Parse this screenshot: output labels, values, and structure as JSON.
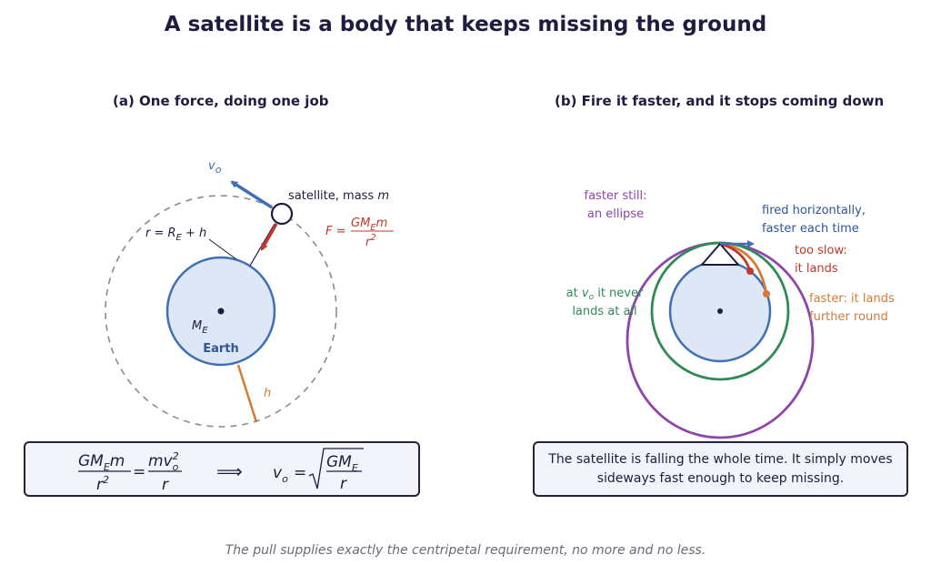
{
  "title": "A satellite is a body that keeps missing the ground",
  "panel_a": {
    "heading": "(a) One force, doing one job",
    "velocity_symbol": "v",
    "velocity_subscript": "o",
    "satellite_label_prefix": "satellite, mass ",
    "satellite_label_var": "m",
    "radius_label": "r = R",
    "radius_label_sub": "E",
    "radius_label_suffix": " + h",
    "force_label": "F =",
    "force_numerator": "GM",
    "force_numerator_sub": "E",
    "force_numerator_tail": "m",
    "force_denominator": "r",
    "force_denominator_sup": "2",
    "earth_mass_label": "M",
    "earth_mass_sub": "E",
    "earth_label": "Earth",
    "altitude_label": "h",
    "equation": {
      "lhs_num": "GM",
      "lhs_num_sub": "E",
      "lhs_num_tail": "m",
      "lhs_den": "r",
      "lhs_den_sup": "2",
      "equals": "=",
      "rhs_num": "mv",
      "rhs_num_sup": "2",
      "rhs_num_sub": "o",
      "rhs_den": "r",
      "implies": "⟹",
      "result_lhs": "v",
      "result_lhs_sub": "o",
      "result_equals": "=",
      "result_num": "GM",
      "result_num_sub": "E",
      "result_den": "r"
    }
  },
  "panel_b": {
    "heading": "(b) Fire it faster, and it stops coming down",
    "ellipse_label_line1": "faster still:",
    "ellipse_label_line2": "an ellipse",
    "fired_label_line1": "fired horizontally,",
    "fired_label_line2": "faster each time",
    "slow_label_line1": "too slow:",
    "slow_label_line2": "it lands",
    "circle_label_line1_a": "at ",
    "circle_label_line1_var": "v",
    "circle_label_line1_sub": "o",
    "circle_label_line1_b": " it never",
    "circle_label_line2": "lands at all",
    "faster_label_line1": "faster: it lands",
    "faster_label_line2": "further round",
    "box_text": "The satellite is falling the whole time. It simply moves sideways fast enough to keep missing."
  },
  "footer": "The pull supplies exactly the centripetal requirement, no more and no less.",
  "colors": {
    "navy": "#1f1d3f",
    "blue": "#3f6fb5",
    "earth_fill": "#dde7f5",
    "red": "#c0392b",
    "orange": "#d67a35",
    "green": "#2e8b57",
    "purple": "#8e44ad",
    "gray": "#8a8a94"
  }
}
